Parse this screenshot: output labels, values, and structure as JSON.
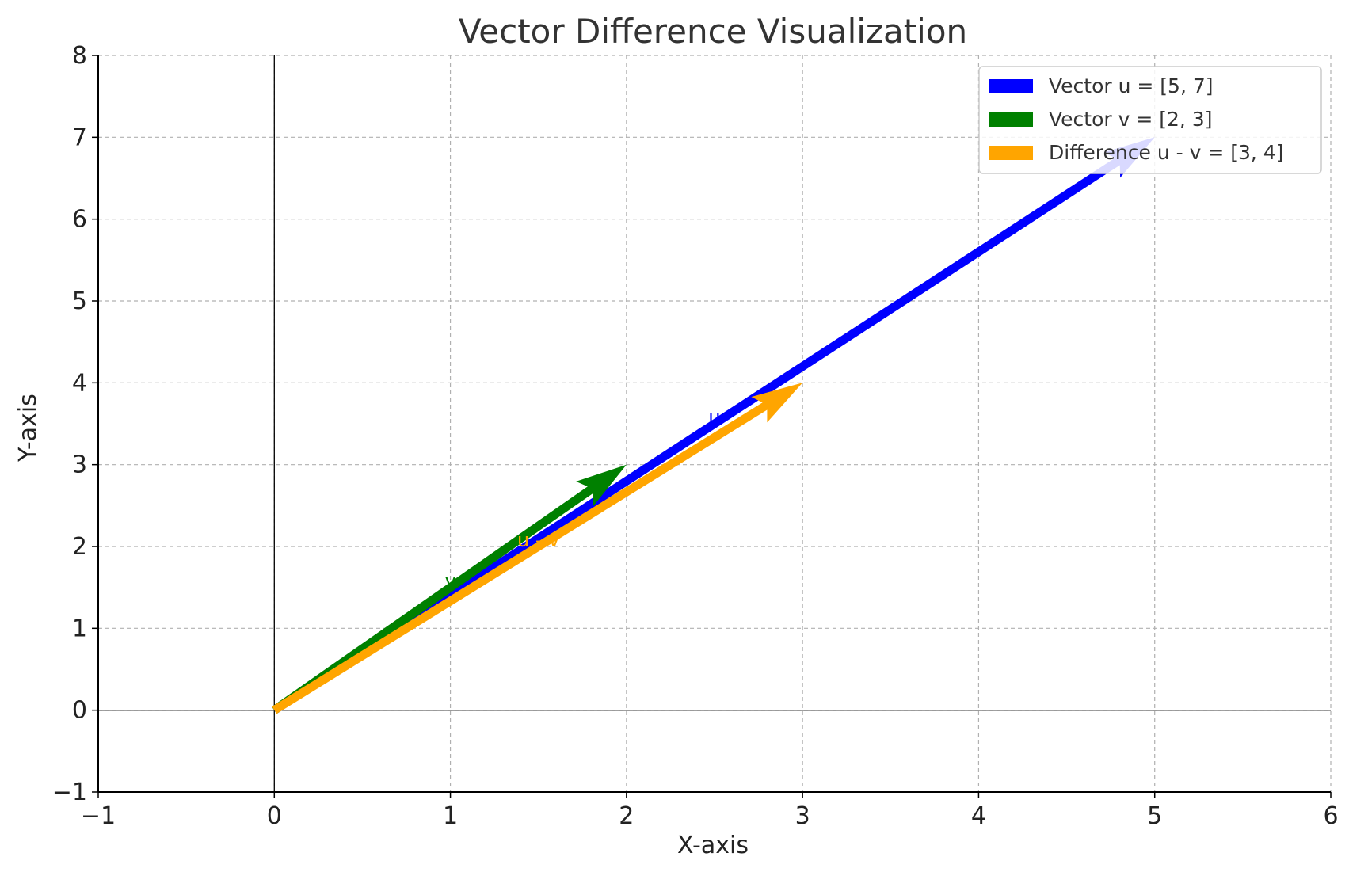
{
  "chart_data": {
    "type": "vector",
    "title": "Vector Difference Visualization",
    "xlabel": "X-axis",
    "ylabel": "Y-axis",
    "xlim": [
      -1,
      6
    ],
    "ylim": [
      -1,
      8
    ],
    "xticks": [
      -1,
      0,
      1,
      2,
      3,
      4,
      5,
      6
    ],
    "yticks": [
      -1,
      0,
      1,
      2,
      3,
      4,
      5,
      6,
      7,
      8
    ],
    "grid": true,
    "legend_position": "top-right",
    "series": [
      {
        "name": "Vector u = [5, 7]",
        "label": "u",
        "start": [
          0,
          0
        ],
        "end": [
          5,
          7
        ],
        "color": "#0000ff",
        "label_at": [
          2.5,
          3.5
        ]
      },
      {
        "name": "Vector v = [2, 3]",
        "label": "v",
        "start": [
          0,
          0
        ],
        "end": [
          2,
          3
        ],
        "color": "#008000",
        "label_at": [
          1.0,
          1.5
        ]
      },
      {
        "name": "Difference u - v = [3, 4]",
        "label": "u - v",
        "start": [
          0,
          0
        ],
        "end": [
          3,
          4
        ],
        "color": "#ffa500",
        "label_at": [
          1.5,
          2.0
        ]
      }
    ]
  }
}
